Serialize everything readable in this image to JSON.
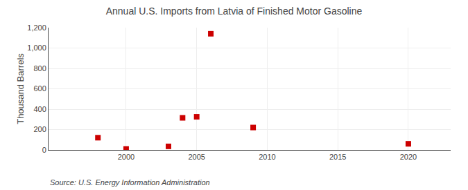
{
  "chart_data": {
    "type": "scatter",
    "title": "Annual U.S. Imports from Latvia of Finished Motor Gasoline",
    "y_label": "Thousand Barrels",
    "annotations": [
      "Source: U.S. Energy Information Administration"
    ],
    "x": [
      1998,
      2000,
      2003,
      2004,
      2005,
      2006,
      2009,
      2020
    ],
    "values": [
      120,
      10,
      35,
      315,
      325,
      1140,
      220,
      60
    ],
    "color": "#cc0000",
    "marker": "square",
    "xlim": [
      1994.5,
      2023
    ],
    "xticks": [
      2000,
      2005,
      2010,
      2015,
      2020
    ],
    "ylim": [
      0,
      1200
    ],
    "yticks": [
      0,
      200,
      400,
      600,
      800,
      {
        "value": 1000,
        "label": "1,000"
      },
      {
        "value": 1200,
        "label": "1,200"
      }
    ],
    "grid": true
  }
}
